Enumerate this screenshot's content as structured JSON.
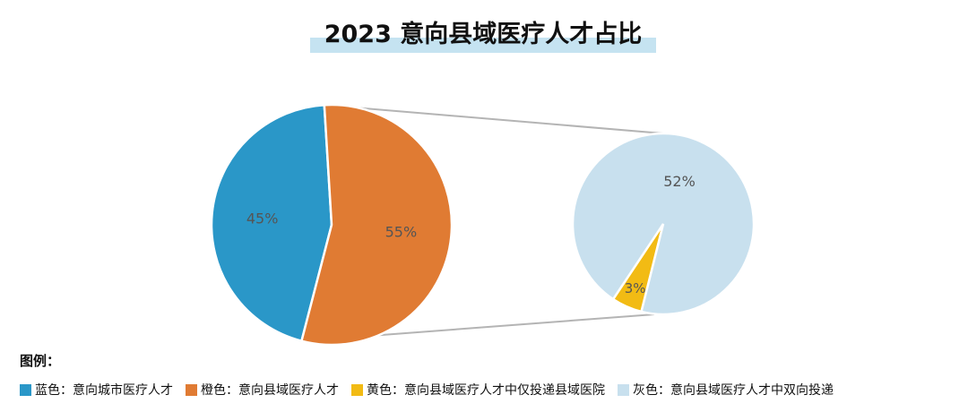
{
  "chart_data": {
    "type": "pie",
    "title": "2023 意向县域医疗人才占比",
    "main_pie": {
      "slices": [
        {
          "label": "45%",
          "value": 45,
          "color": "#2a97c8"
        },
        {
          "label": "55%",
          "value": 55,
          "color": "#e07b33"
        }
      ]
    },
    "sub_pie": {
      "slices": [
        {
          "label": "3%",
          "value": 3,
          "color": "#f2bb14"
        },
        {
          "label": "52%",
          "value": 52,
          "color": "#c8e0ee"
        }
      ]
    },
    "connector_color": "#b4b4b4",
    "label_color": "#555555",
    "legend": {
      "heading": "图例：",
      "items": [
        {
          "text": "蓝色：意向城市医疗人才",
          "color": "#2a97c8"
        },
        {
          "text": "橙色：意向县域医疗人才",
          "color": "#e07b33"
        },
        {
          "text": "黄色：意向县域医疗人才中仅投递县域医院",
          "color": "#f2bb14"
        },
        {
          "text": "灰色：意向县域医疗人才中双向投递",
          "color": "#c8e0ee"
        }
      ]
    }
  }
}
